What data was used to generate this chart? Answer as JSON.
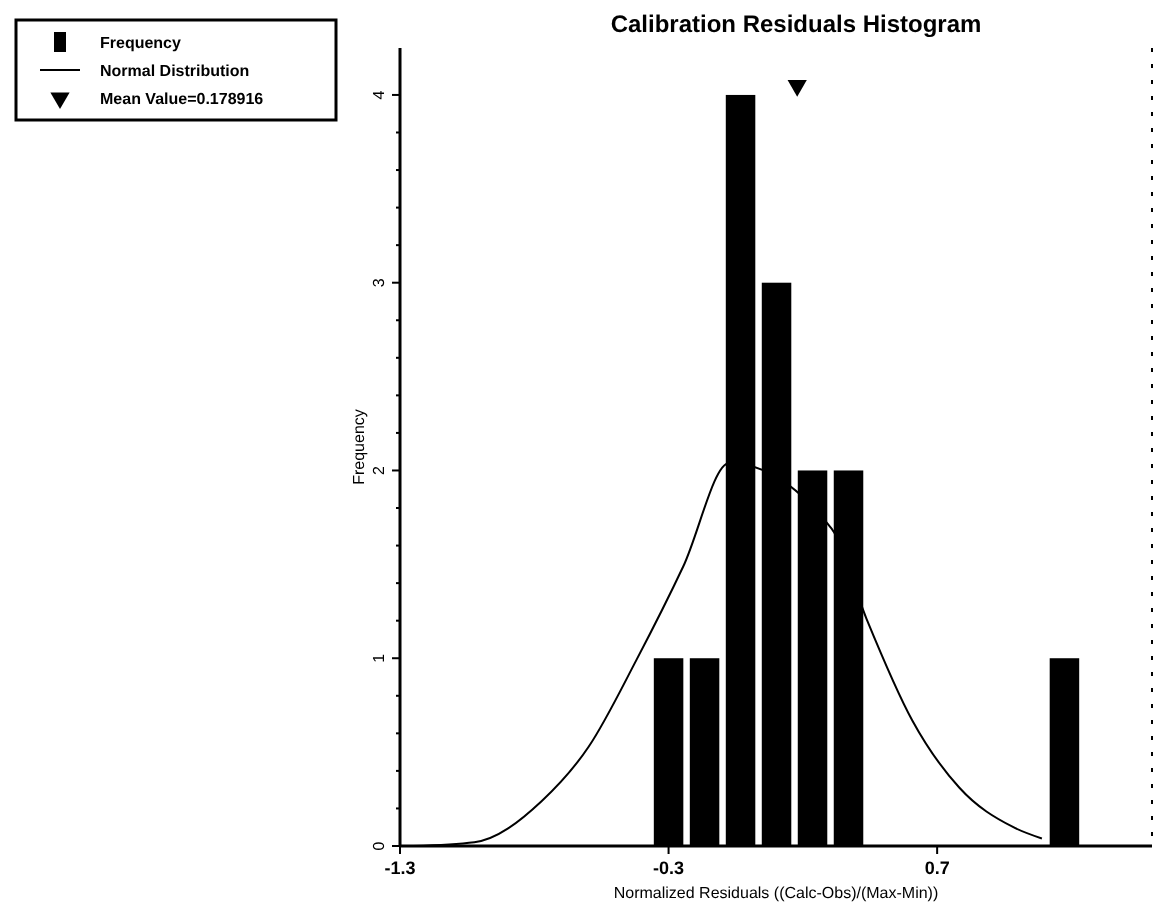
{
  "chart_data": {
    "type": "histogram",
    "title": "Calibration Residuals Histogram",
    "xlabel": "Normalized Residuals ((Calc-Obs)/(Max-Min))",
    "ylabel": "Frequency",
    "bins": [
      -0.367,
      -0.233,
      -0.099,
      0.035,
      0.169,
      0.303,
      0.437,
      0.571,
      0.705,
      0.839,
      0.973,
      1.107,
      1.241
    ],
    "series": [
      {
        "name": "Frequency",
        "color": "#000000",
        "values": [
          1,
          1,
          4,
          3,
          2,
          2,
          0,
          0,
          0,
          0,
          0,
          1
        ]
      },
      {
        "name": "Normal Distribution",
        "type": "line",
        "color": "#000000",
        "x": [
          -1.25,
          -1.023,
          -0.772,
          -0.597,
          -0.42,
          -0.245,
          -0.074,
          0.307,
          0.437,
          0.607,
          0.783,
          0.984,
          1.09
        ],
        "values": [
          0,
          0.02,
          0.24,
          0.53,
          0.99,
          1.49,
          2.04,
          1.69,
          1.21,
          0.67,
          0.31,
          0.1,
          0.04
        ]
      },
      {
        "name": "Mean Value=0.178916",
        "type": "scatter",
        "marker": "triangle",
        "color": "#000000",
        "x": [
          0.178916
        ],
        "values": [
          4.05
        ]
      }
    ],
    "xlim": [
      -1.3,
      1.5
    ],
    "xticks": [
      -1.3,
      -0.3,
      0.7
    ],
    "ylim": [
      0,
      4.25
    ],
    "yticks": [
      0,
      1,
      2,
      3,
      4
    ],
    "legend": "top left",
    "grid": false
  }
}
